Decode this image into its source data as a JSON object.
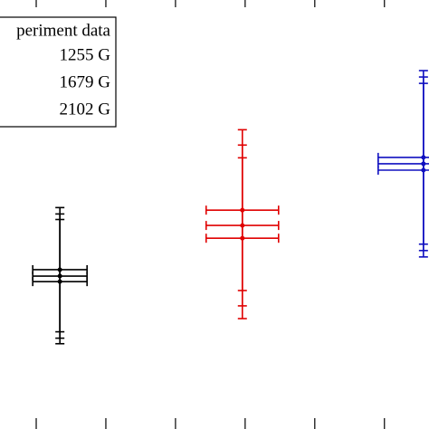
{
  "chart_data": {
    "type": "errorbar",
    "legend_title": "periment data",
    "xlim": [
      0.48,
      6.64
    ],
    "xticks": [
      1,
      2,
      3,
      4,
      5,
      6
    ],
    "ylim": [
      0,
      10
    ],
    "series": [
      {
        "name": "1255 G",
        "color": "#000000",
        "x": [
          1.34,
          1.34,
          1.34
        ],
        "values": [
          3.66,
          3.51,
          3.38
        ],
        "xerr": [
          0.39,
          0.39,
          0.39
        ],
        "yerr": [
          1.46,
          1.46,
          1.46
        ]
      },
      {
        "name": "1679 G",
        "color": "#e00000",
        "x": [
          3.96,
          3.96,
          3.96
        ],
        "values": [
          5.06,
          4.7,
          4.4
        ],
        "xerr": [
          0.52,
          0.52,
          0.52
        ],
        "yerr": [
          1.89,
          1.89,
          1.89
        ]
      },
      {
        "name": "2102 G",
        "color": "#1010c0",
        "x": [
          6.56,
          6.56,
          6.56
        ],
        "values": [
          6.3,
          6.15,
          6.0
        ],
        "xerr": [
          0.65,
          0.65,
          0.65
        ],
        "yerr": [
          2.04,
          2.04,
          2.04
        ]
      }
    ]
  }
}
